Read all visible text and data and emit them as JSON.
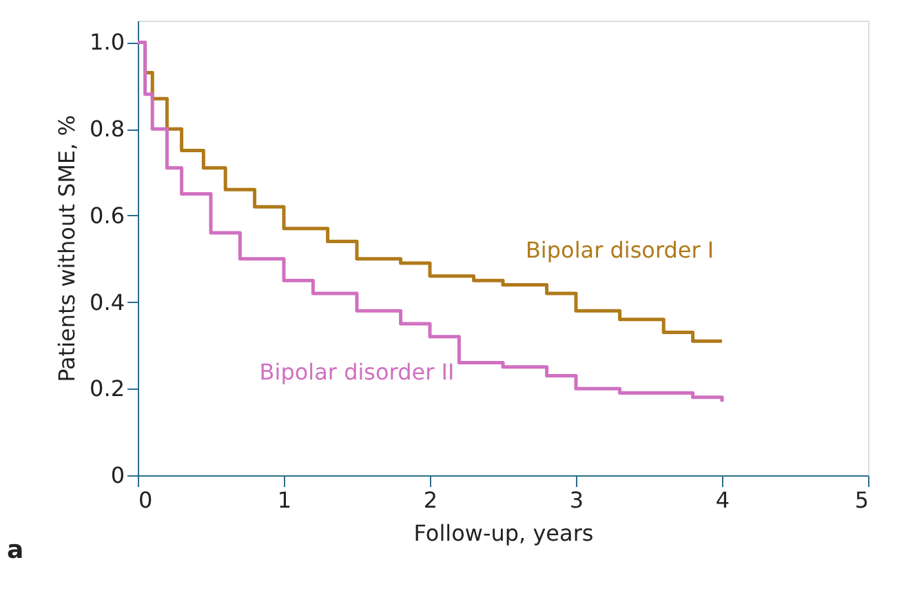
{
  "chart_data": {
    "type": "step",
    "xlabel": "Follow-up, years",
    "ylabel": "Patients without SME, %",
    "xlim": [
      0,
      5
    ],
    "xticks": [
      0,
      1,
      2,
      3,
      4,
      5
    ],
    "ylim": [
      0,
      1.05
    ],
    "yticks": [
      0,
      0.2,
      0.4,
      0.6,
      {
        "value": 0.8,
        "label": "0.8"
      },
      {
        "value": 1.0,
        "label": "1.0"
      }
    ],
    "grid": false,
    "legend": false,
    "line_style": "solid",
    "annotations": [
      "a"
    ],
    "series": [
      {
        "name": "Bipolar disorder I",
        "color": "#b07a1a",
        "x": [
          0,
          0.05,
          0.1,
          0.2,
          0.3,
          0.45,
          0.6,
          0.8,
          1.0,
          1.3,
          1.5,
          1.8,
          2.0,
          2.3,
          2.5,
          2.8,
          3.0,
          3.3,
          3.6,
          3.8,
          4.0
        ],
        "values": [
          1.0,
          0.93,
          0.87,
          0.8,
          0.75,
          0.71,
          0.66,
          0.62,
          0.57,
          0.54,
          0.5,
          0.49,
          0.46,
          0.45,
          0.44,
          0.42,
          0.38,
          0.36,
          0.33,
          0.31,
          0.31
        ]
      },
      {
        "name": "Bipolar disorder II",
        "color": "#d070c0",
        "x": [
          0,
          0.05,
          0.1,
          0.2,
          0.3,
          0.5,
          0.7,
          1.0,
          1.2,
          1.5,
          1.8,
          2.0,
          2.2,
          2.5,
          2.8,
          3.0,
          3.3,
          3.5,
          3.8,
          4.0
        ],
        "values": [
          1.0,
          0.88,
          0.8,
          0.71,
          0.65,
          0.56,
          0.5,
          0.45,
          0.42,
          0.38,
          0.35,
          0.32,
          0.26,
          0.25,
          0.23,
          0.2,
          0.19,
          0.19,
          0.18,
          0.17
        ]
      }
    ]
  }
}
